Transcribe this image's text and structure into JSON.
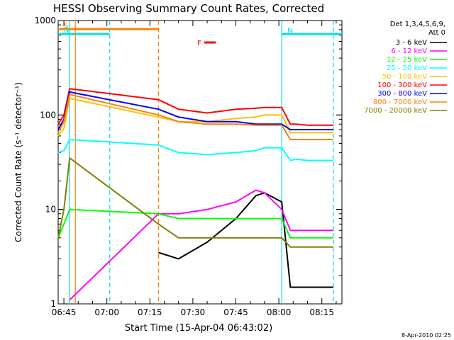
{
  "chart_data": {
    "type": "line",
    "title": "HESSI Observing Summary Count Rates, Corrected",
    "xlabel": "Start Time (15-Apr-04 06:43:02)",
    "ylabel": "Corrected Count Rate (s⁻¹ detector⁻¹)",
    "y_scale": "log",
    "ylim": [
      1,
      1000
    ],
    "xlim": [
      "06:43",
      "08:22"
    ],
    "x_ticks": [
      "06:45",
      "07:00",
      "07:15",
      "07:30",
      "07:45",
      "08:00",
      "08:15"
    ],
    "y_ticks": [
      "1",
      "10",
      "100",
      "1000"
    ],
    "legend_title": [
      "Det 1,3,4,5,6,9,",
      "Att 0"
    ],
    "legend_position": "right",
    "timestamp": "8-Apr-2010 02:25",
    "flags": [
      {
        "label": "S",
        "color": "#ff8000",
        "start": "06:43",
        "end": "07:18"
      },
      {
        "label": "N",
        "color": "#00e0e0",
        "start": "06:43",
        "end": "07:01"
      },
      {
        "label": "N",
        "color": "#00e0e0",
        "start": "08:01",
        "end": "08:22"
      },
      {
        "label": "F",
        "color": "#ff0000",
        "start": "07:34",
        "end": "07:38"
      }
    ],
    "vlines": [
      {
        "time": "06:47",
        "color": "#00e0e0",
        "style": "solid"
      },
      {
        "time": "06:49",
        "color": "#ff8000",
        "style": "solid"
      },
      {
        "time": "07:01",
        "color": "#00e0e0",
        "style": "dashed"
      },
      {
        "time": "07:18",
        "color": "#ff8000",
        "style": "dashed"
      },
      {
        "time": "08:01",
        "color": "#00e0e0",
        "style": "solid"
      },
      {
        "time": "08:19",
        "color": "#00e0e0",
        "style": "dashed"
      }
    ],
    "x": [
      "06:43",
      "06:45",
      "06:47",
      "07:18",
      "07:25",
      "07:35",
      "07:45",
      "07:52",
      "07:55",
      "08:01",
      "08:04",
      "08:06",
      "08:10",
      "08:15",
      "08:19"
    ],
    "series": [
      {
        "name": "3 - 6 keV",
        "color": "#000000",
        "values": [
          null,
          null,
          null,
          3.5,
          3.0,
          4.5,
          8,
          14,
          15,
          12,
          1.5,
          1.5,
          1.5,
          1.5,
          1.5
        ]
      },
      {
        "name": "6 - 12 keV",
        "color": "#ff00ff",
        "values": [
          null,
          null,
          1.1,
          9,
          9,
          10,
          12,
          16,
          15,
          10,
          6,
          6,
          6,
          6,
          6
        ]
      },
      {
        "name": "12 - 25 keV",
        "color": "#00ff00",
        "values": [
          5,
          7,
          10,
          9,
          8,
          8,
          8,
          8,
          8,
          8,
          5,
          5,
          5,
          5,
          5
        ]
      },
      {
        "name": "25 - 50 keV",
        "color": "#00ffff",
        "values": [
          40,
          42,
          55,
          48,
          40,
          38,
          40,
          42,
          45,
          45,
          33,
          34,
          33,
          33,
          33
        ]
      },
      {
        "name": "50 - 100 keV",
        "color": "#ffc000",
        "values": [
          60,
          72,
          150,
          95,
          85,
          85,
          92,
          95,
          100,
          100,
          65,
          65,
          65,
          65,
          65
        ]
      },
      {
        "name": "100 - 300 keV",
        "color": "#ff0000",
        "values": [
          80,
          100,
          190,
          145,
          115,
          105,
          115,
          118,
          120,
          120,
          80,
          80,
          78,
          78,
          78
        ]
      },
      {
        "name": "300 - 800 keV",
        "color": "#0000ff",
        "values": [
          70,
          90,
          175,
          115,
          95,
          85,
          85,
          80,
          80,
          80,
          70,
          70,
          70,
          70,
          70
        ]
      },
      {
        "name": "800 - 7000 keV",
        "color": "#ff8000",
        "values": [
          65,
          85,
          165,
          100,
          85,
          80,
          80,
          78,
          78,
          78,
          55,
          55,
          55,
          55,
          55
        ]
      },
      {
        "name": "7000 - 20000 keV",
        "color": "#808000",
        "values": [
          5,
          10,
          35,
          7,
          5,
          5,
          5,
          5,
          5,
          5,
          4,
          4,
          4,
          4,
          4
        ]
      }
    ]
  }
}
